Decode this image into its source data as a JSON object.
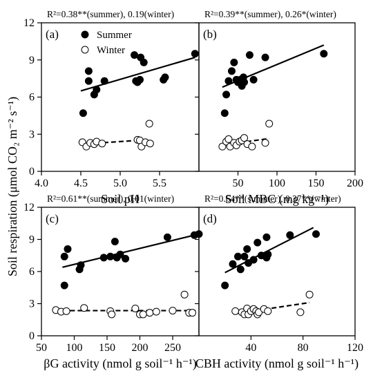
{
  "figure": {
    "ylabel": "Soil respiration (μmol CO₂ m⁻² s⁻¹)",
    "legend": {
      "summer": "Summer",
      "winter": "Winter"
    }
  },
  "chart_data": [
    {
      "type": "scatter",
      "panel": "(a)",
      "r2": "R²=0.38**(summer), 0.19(winter)",
      "xlabel": "Soil pH",
      "xlim": [
        4.0,
        6.0
      ],
      "ylim": [
        0,
        12
      ],
      "xticks": [
        4.0,
        4.5,
        5.0,
        5.5
      ],
      "xtick_labels": [
        "4.0",
        "4.5",
        "5.0",
        "5.5"
      ],
      "yticks": [
        0,
        3,
        6,
        9,
        12
      ],
      "legend": true,
      "series": [
        {
          "name": "Summer",
          "fit": [
            [
              4.5,
              6.5
            ],
            [
              5.95,
              9.2
            ]
          ],
          "points": [
            [
              4.53,
              4.7
            ],
            [
              4.6,
              7.3
            ],
            [
              4.6,
              8.1
            ],
            [
              4.67,
              6.2
            ],
            [
              4.7,
              6.6
            ],
            [
              4.8,
              7.3
            ],
            [
              5.18,
              9.4
            ],
            [
              5.2,
              7.3
            ],
            [
              5.22,
              7.2
            ],
            [
              5.25,
              7.4
            ],
            [
              5.26,
              9.2
            ],
            [
              5.3,
              8.8
            ],
            [
              5.55,
              7.4
            ],
            [
              5.57,
              7.6
            ],
            [
              5.95,
              9.5
            ]
          ]
        },
        {
          "name": "Winter",
          "fit": [
            [
              4.5,
              2.2
            ],
            [
              5.35,
              2.55
            ]
          ],
          "points": [
            [
              4.52,
              2.35
            ],
            [
              4.57,
              2.0
            ],
            [
              4.62,
              2.3
            ],
            [
              4.67,
              2.2
            ],
            [
              4.7,
              2.4
            ],
            [
              4.77,
              2.25
            ],
            [
              5.22,
              2.55
            ],
            [
              5.25,
              2.5
            ],
            [
              5.27,
              2.0
            ],
            [
              5.32,
              2.35
            ],
            [
              5.37,
              3.85
            ],
            [
              5.38,
              2.25
            ]
          ]
        }
      ]
    },
    {
      "type": "scatter",
      "panel": "(b)",
      "r2": "R²=0.39**(summer), 0.26*(winter)",
      "xlabel": "Soil MBC (mg kg⁻¹)",
      "xlim": [
        0,
        200
      ],
      "ylim": [
        0,
        12
      ],
      "xticks": [
        50,
        100,
        150,
        200
      ],
      "xtick_labels": [
        "50",
        "100",
        "150",
        "200"
      ],
      "yticks": [
        0,
        3,
        6,
        9,
        12
      ],
      "legend": false,
      "series": [
        {
          "name": "Summer",
          "fit": [
            [
              30,
              6.8
            ],
            [
              160,
              10.2
            ]
          ],
          "points": [
            [
              33,
              4.7
            ],
            [
              35,
              6.2
            ],
            [
              38,
              7.3
            ],
            [
              42,
              8.1
            ],
            [
              45,
              8.8
            ],
            [
              48,
              7.4
            ],
            [
              50,
              7.2
            ],
            [
              53,
              7.4
            ],
            [
              55,
              6.9
            ],
            [
              57,
              7.6
            ],
            [
              58,
              7.2
            ],
            [
              65,
              9.4
            ],
            [
              70,
              7.4
            ],
            [
              85,
              9.2
            ],
            [
              160,
              9.5
            ]
          ]
        },
        {
          "name": "Winter",
          "fit": [
            [
              32,
              2.15
            ],
            [
              90,
              2.65
            ]
          ],
          "points": [
            [
              30,
              2.0
            ],
            [
              35,
              2.4
            ],
            [
              38,
              2.6
            ],
            [
              40,
              2.0
            ],
            [
              45,
              2.3
            ],
            [
              48,
              2.1
            ],
            [
              52,
              2.4
            ],
            [
              55,
              2.5
            ],
            [
              58,
              2.7
            ],
            [
              62,
              2.2
            ],
            [
              68,
              2.0
            ],
            [
              85,
              2.3
            ],
            [
              90,
              3.85
            ]
          ]
        }
      ]
    },
    {
      "type": "scatter",
      "panel": "(c)",
      "r2": "R²=0.61**(summer), 0.01(winter)",
      "xlabel": "βG activity (nmol g soil⁻¹ h⁻¹)",
      "xlim": [
        50,
        290
      ],
      "ylim": [
        0,
        12
      ],
      "xticks": [
        50,
        100,
        150,
        200,
        250
      ],
      "xtick_labels": [
        "50",
        "100",
        "150",
        "200",
        "250"
      ],
      "yticks": [
        0,
        3,
        6,
        9,
        12
      ],
      "legend": false,
      "series": [
        {
          "name": "Summer",
          "fit": [
            [
              82,
              6.4
            ],
            [
              290,
              9.5
            ]
          ],
          "points": [
            [
              85,
              7.4
            ],
            [
              85,
              4.7
            ],
            [
              90,
              8.1
            ],
            [
              108,
              6.2
            ],
            [
              110,
              6.6
            ],
            [
              145,
              7.3
            ],
            [
              155,
              7.4
            ],
            [
              162,
              8.8
            ],
            [
              165,
              7.3
            ],
            [
              170,
              7.6
            ],
            [
              178,
              7.2
            ],
            [
              242,
              9.2
            ],
            [
              283,
              9.4
            ],
            [
              290,
              9.5
            ]
          ]
        },
        {
          "name": "Winter",
          "fit": [
            [
              82,
              2.35
            ],
            [
              285,
              2.35
            ]
          ],
          "points": [
            [
              72,
              2.4
            ],
            [
              80,
              2.25
            ],
            [
              88,
              2.3
            ],
            [
              115,
              2.6
            ],
            [
              155,
              2.3
            ],
            [
              157,
              2.0
            ],
            [
              193,
              2.55
            ],
            [
              200,
              2.0
            ],
            [
              205,
              2.0
            ],
            [
              215,
              2.15
            ],
            [
              225,
              2.25
            ],
            [
              250,
              2.35
            ],
            [
              268,
              3.85
            ],
            [
              275,
              2.15
            ],
            [
              280,
              2.15
            ]
          ]
        }
      ]
    },
    {
      "type": "scatter",
      "panel": "(d)",
      "r2": "R²=0.64**(summer), 0.37**(winter)",
      "xlabel": "CBH activity (nmol g soil⁻¹ h⁻¹)",
      "xlim": [
        0,
        120
      ],
      "ylim": [
        0,
        12
      ],
      "xticks": [
        40,
        80,
        120
      ],
      "xtick_labels": [
        "40",
        "80",
        "120"
      ],
      "yticks": [
        0,
        3,
        6,
        9,
        12
      ],
      "legend": false,
      "series": [
        {
          "name": "Summer",
          "fit": [
            [
              20,
              5.9
            ],
            [
              88,
              10.1
            ]
          ],
          "points": [
            [
              20,
              4.7
            ],
            [
              26,
              6.7
            ],
            [
              30,
              7.4
            ],
            [
              32,
              6.2
            ],
            [
              35,
              7.4
            ],
            [
              37,
              8.1
            ],
            [
              38,
              6.8
            ],
            [
              42,
              7.1
            ],
            [
              45,
              8.7
            ],
            [
              48,
              7.5
            ],
            [
              52,
              9.2
            ],
            [
              52,
              7.3
            ],
            [
              53,
              7.6
            ],
            [
              70,
              9.4
            ],
            [
              90,
              9.5
            ]
          ]
        },
        {
          "name": "Winter",
          "fit": [
            [
              27,
              2.05
            ],
            [
              85,
              3.1
            ]
          ],
          "points": [
            [
              28,
              2.3
            ],
            [
              33,
              2.2
            ],
            [
              35,
              2.0
            ],
            [
              37,
              2.55
            ],
            [
              38,
              2.0
            ],
            [
              40,
              2.3
            ],
            [
              42,
              2.5
            ],
            [
              44,
              2.3
            ],
            [
              45,
              2.0
            ],
            [
              46,
              2.2
            ],
            [
              50,
              2.5
            ],
            [
              53,
              2.3
            ],
            [
              78,
              2.2
            ],
            [
              85,
              3.85
            ]
          ]
        }
      ]
    }
  ]
}
